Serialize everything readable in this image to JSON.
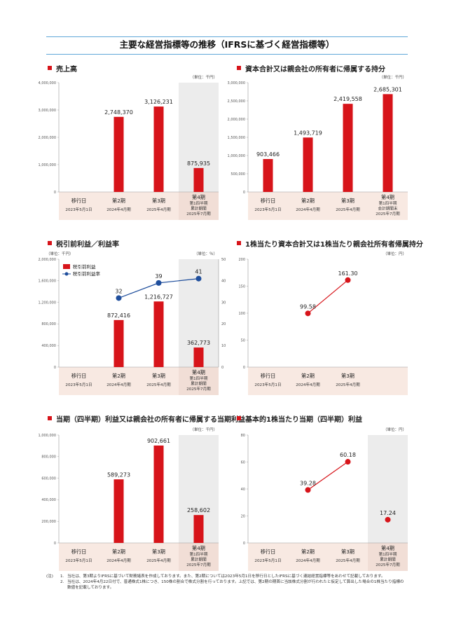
{
  "page_title": "主要な経営指標等の推移（IFRSに基づく経営指標等）",
  "colors": {
    "bar": "#d7141a",
    "line": "#d7141a",
    "line2": "#1f4e9c",
    "shade": "#ececec",
    "label_bg": "#f8e9e2",
    "axis": "#999999"
  },
  "chart_data": [
    {
      "id": "revenue",
      "type": "bar",
      "title": "売上高",
      "unit_label": "（単位：千円）",
      "categories": [
        {
          "name": "移行日",
          "sub": [
            "2023年5月1日"
          ]
        },
        {
          "name": "第2期",
          "sub": [
            "2024年4月期"
          ]
        },
        {
          "name": "第3期",
          "sub": [
            "2025年4月期"
          ]
        },
        {
          "name": "第4期",
          "sub": [
            "第1四半期",
            "累計期間",
            "2025年7月期"
          ]
        }
      ],
      "values": [
        null,
        2748370,
        3126231,
        875935
      ],
      "value_labels": [
        "",
        "2,748,370",
        "3,126,231",
        "875,935"
      ],
      "ylim": [
        0,
        4000000
      ],
      "yticks": [
        0,
        1000000,
        2000000,
        3000000,
        4000000
      ],
      "ytick_labels": [
        "0",
        "1,000,000",
        "2,000,000",
        "3,000,000",
        "4,000,000"
      ],
      "shaded_index": 3
    },
    {
      "id": "equity",
      "type": "bar",
      "title": "資本合計又は親会社の所有者に帰属する持分",
      "unit_label": "（単位：千円）",
      "categories": [
        {
          "name": "移行日",
          "sub": [
            "2023年5月1日"
          ]
        },
        {
          "name": "第2期",
          "sub": [
            "2024年4月期"
          ]
        },
        {
          "name": "第3期",
          "sub": [
            "2025年4月期"
          ]
        },
        {
          "name": "第4期",
          "sub": [
            "第1四半期",
            "会計期間末",
            "2025年7月期"
          ]
        }
      ],
      "values": [
        903466,
        1493719,
        2419558,
        2685301
      ],
      "value_labels": [
        "903,466",
        "1,493,719",
        "2,419,558",
        "2,685,301"
      ],
      "ylim": [
        0,
        3000000
      ],
      "yticks": [
        0,
        500000,
        1000000,
        1500000,
        2000000,
        2500000,
        3000000
      ],
      "ytick_labels": [
        "0",
        "500,000",
        "1,000,000",
        "1,500,000",
        "2,000,000",
        "2,500,000",
        "3,000,000"
      ],
      "shaded_index": null
    },
    {
      "id": "pretax",
      "type": "bar+line",
      "title": "税引前利益／利益率",
      "unit_label": "（単位：千円）",
      "unit_label_right": "（単位：％）",
      "categories": [
        {
          "name": "移行日",
          "sub": [
            "2023年5月1日"
          ]
        },
        {
          "name": "第2期",
          "sub": [
            "2024年4月期"
          ]
        },
        {
          "name": "第3期",
          "sub": [
            "2025年4月期"
          ]
        },
        {
          "name": "第4期",
          "sub": [
            "第1四半期",
            "累計期間",
            "2025年7月期"
          ]
        }
      ],
      "values": [
        null,
        872416,
        1216727,
        362773
      ],
      "value_labels": [
        "",
        "872,416",
        "1,216,727",
        "362,773"
      ],
      "ylim": [
        0,
        2000000
      ],
      "yticks": [
        0,
        400000,
        800000,
        1200000,
        1600000,
        2000000
      ],
      "ytick_labels": [
        "0",
        "400,000",
        "800,000",
        "1,200,000",
        "1,600,000",
        "2,000,000"
      ],
      "line_values": [
        null,
        32,
        39,
        41
      ],
      "line_labels": [
        "",
        "32",
        "39",
        "41"
      ],
      "y2lim": [
        0,
        50
      ],
      "y2ticks": [
        0,
        10,
        20,
        30,
        40,
        50
      ],
      "y2tick_labels": [
        "0",
        "10",
        "20",
        "30",
        "40",
        "50"
      ],
      "legend": [
        "税引前利益",
        "税引前利益率"
      ],
      "shaded_index": 3
    },
    {
      "id": "bps",
      "type": "line",
      "title": "1株当たり資本合計又は1株当たり親会社所有者帰属持分",
      "unit_label": "（単位：円）",
      "categories": [
        {
          "name": "移行日",
          "sub": [
            "2023年5月1日"
          ]
        },
        {
          "name": "第2期",
          "sub": [
            "2024年4月期"
          ]
        },
        {
          "name": "第3期",
          "sub": [
            "2025年4月期"
          ]
        },
        {
          "name": "",
          "sub": []
        }
      ],
      "line_values": [
        null,
        99.58,
        161.3,
        null
      ],
      "line_labels": [
        "",
        "99.58",
        "161.30",
        ""
      ],
      "ylim": [
        0,
        200
      ],
      "yticks": [
        0,
        50,
        100,
        150,
        200
      ],
      "ytick_labels": [
        "0",
        "50",
        "100",
        "150",
        "200"
      ],
      "shaded_index": null
    },
    {
      "id": "net_income",
      "type": "bar",
      "title": "当期（四半期）利益又は親会社の所有者に帰属する当期利益",
      "unit_label": "（単位：千円）",
      "categories": [
        {
          "name": "移行日",
          "sub": [
            "2023年5月1日"
          ]
        },
        {
          "name": "第2期",
          "sub": [
            "2024年4月期"
          ]
        },
        {
          "name": "第3期",
          "sub": [
            "2025年4月期"
          ]
        },
        {
          "name": "第4期",
          "sub": [
            "第1四半期",
            "累計期間",
            "2025年7月期"
          ]
        }
      ],
      "values": [
        null,
        589273,
        902661,
        258602
      ],
      "value_labels": [
        "",
        "589,273",
        "902,661",
        "258,602"
      ],
      "ylim": [
        0,
        1000000
      ],
      "yticks": [
        0,
        200000,
        400000,
        600000,
        800000,
        1000000
      ],
      "ytick_labels": [
        "0",
        "200,000",
        "400,000",
        "600,000",
        "800,000",
        "1,000,000"
      ],
      "shaded_index": 3
    },
    {
      "id": "eps",
      "type": "line",
      "title": "基本的1株当たり当期（四半期）利益",
      "unit_label": "（単位：円）",
      "categories": [
        {
          "name": "移行日",
          "sub": [
            "2023年5月1日"
          ]
        },
        {
          "name": "第2期",
          "sub": [
            "2024年4月期"
          ]
        },
        {
          "name": "第3期",
          "sub": [
            "2025年4月期"
          ]
        },
        {
          "name": "第4期",
          "sub": [
            "第1四半期",
            "累計期間",
            "2025年7月期"
          ]
        }
      ],
      "line_values": [
        null,
        39.28,
        60.18,
        17.24
      ],
      "line_labels": [
        "",
        "39.28",
        "60.18",
        "17.24"
      ],
      "line_connect_upto": 2,
      "ylim": [
        0,
        80
      ],
      "yticks": [
        0,
        20,
        40,
        60,
        80
      ],
      "ytick_labels": [
        "0",
        "20",
        "40",
        "60",
        "80"
      ],
      "shaded_index": 3
    }
  ],
  "notes": {
    "lead": "(注)",
    "items": [
      {
        "num": "1.",
        "text": "当社は、第3期よりIFRSに基づいて財務諸表を作成しております。また、第2期については2023年5月1日を移行日としたIFRSに基づく連結経営指標等をあわせて記載しております。"
      },
      {
        "num": "2.",
        "text": "当社は、2024年4月22日付で、普通株式1株につき、150株の割合で株式分割を行っております。上記では、第2期の期首に当該株式分割が行われたと仮定して算出した場合の1株当たり指標の数値を記載しております。"
      }
    ]
  }
}
